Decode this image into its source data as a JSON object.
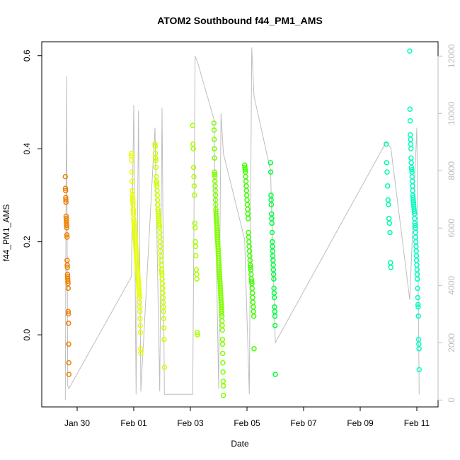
{
  "chart_data": {
    "type": "scatter",
    "title": "ATOM2 Southbound f44_PM1_AMS",
    "xlabel": "Date",
    "ylabel": "f44_PM1_AMS",
    "x_axis_type": "date",
    "x_range": [
      "2017-01-28T18:00",
      "2017-02-11T18:00"
    ],
    "x_ticks": [
      {
        "date": "2017-01-30",
        "label": "Jan 30"
      },
      {
        "date": "2017-02-01",
        "label": "Feb 01"
      },
      {
        "date": "2017-02-03",
        "label": "Feb 03"
      },
      {
        "date": "2017-02-05",
        "label": "Feb 05"
      },
      {
        "date": "2017-02-07",
        "label": "Feb 07"
      },
      {
        "date": "2017-02-09",
        "label": "Feb 09"
      },
      {
        "date": "2017-02-11",
        "label": "Feb 11"
      }
    ],
    "ylim": [
      -0.155,
      0.63
    ],
    "y_ticks": [
      0.0,
      0.2,
      0.4,
      0.6
    ],
    "y_tick_labels": [
      "0.0",
      "0.2",
      "0.4",
      "0.6"
    ],
    "y2_label": "",
    "y2lim": [
      -240,
      12500
    ],
    "y2_ticks": [
      0,
      2000,
      4000,
      6000,
      8000,
      10000,
      12000
    ],
    "y2_tick_labels": [
      "0",
      "2000",
      "4000",
      "6000",
      "8000",
      "10000",
      "12000"
    ],
    "grid": false,
    "legend": "none",
    "marker": "open-circle",
    "secondary_series_color": "#bebebe",
    "point_color_scale": [
      "#ff8c00",
      "#e6ff00",
      "#80ff00",
      "#00ff40",
      "#00ffc0"
    ],
    "clusters": [
      {
        "start": "2017-01-29T14:00",
        "end": "2017-01-29T17:00",
        "color": "#f08000",
        "values": [
          0.34,
          0.315,
          0.31,
          0.295,
          0.29,
          0.285,
          0.255,
          0.25,
          0.245,
          0.24,
          0.235,
          0.23,
          0.215,
          0.21,
          0.16,
          0.15,
          0.145,
          0.13,
          0.125,
          0.12,
          0.115,
          0.11,
          0.1,
          0.05,
          0.045,
          0.025,
          -0.02,
          -0.06,
          -0.085
        ]
      },
      {
        "start": "2017-01-31T22:00",
        "end": "2017-02-01T06:00",
        "color": "#e6ff00",
        "values": [
          0.39,
          0.385,
          0.375,
          0.35,
          0.33,
          0.31,
          0.3,
          0.295,
          0.29,
          0.285,
          0.28,
          0.27,
          0.265,
          0.26,
          0.25,
          0.245,
          0.24,
          0.235,
          0.23,
          0.225,
          0.22,
          0.215,
          0.21,
          0.205,
          0.2,
          0.195,
          0.19,
          0.185,
          0.18,
          0.175,
          0.17,
          0.165,
          0.16,
          0.155,
          0.15,
          0.145,
          0.14,
          0.135,
          0.13,
          0.125,
          0.12,
          0.115,
          0.11,
          0.105,
          0.1,
          0.095,
          0.09,
          0.085,
          0.08,
          0.07,
          0.06,
          0.05,
          0.035,
          0.02,
          0.005,
          -0.03,
          -0.04
        ]
      },
      {
        "start": "2017-02-01T18:00",
        "end": "2017-02-02T02:00",
        "color": "#ccff00",
        "values": [
          0.41,
          0.405,
          0.39,
          0.38,
          0.375,
          0.36,
          0.34,
          0.33,
          0.325,
          0.32,
          0.31,
          0.3,
          0.29,
          0.28,
          0.27,
          0.265,
          0.26,
          0.255,
          0.25,
          0.245,
          0.24,
          0.235,
          0.23,
          0.22,
          0.21,
          0.2,
          0.19,
          0.18,
          0.17,
          0.16,
          0.15,
          0.14,
          0.135,
          0.13,
          0.12,
          0.11,
          0.1,
          0.09,
          0.08,
          0.07,
          0.06,
          0.05,
          0.035,
          0.015,
          -0.01,
          -0.07
        ]
      },
      {
        "start": "2017-02-03T02:00",
        "end": "2017-02-03T06:00",
        "color": "#a8ff00",
        "values": [
          0.45,
          0.41,
          0.4,
          0.36,
          0.34,
          0.32,
          0.3,
          0.24,
          0.23,
          0.2,
          0.19,
          0.17,
          0.14,
          0.13,
          0.12,
          0.005,
          0.0
        ]
      },
      {
        "start": "2017-02-03T20:00",
        "end": "2017-02-04T04:00",
        "color": "#80ff00",
        "values": [
          0.455,
          0.44,
          0.42,
          0.4,
          0.38,
          0.35,
          0.345,
          0.34,
          0.33,
          0.32,
          0.31,
          0.3,
          0.29,
          0.28,
          0.27,
          0.265,
          0.26,
          0.255,
          0.25,
          0.245,
          0.24,
          0.235,
          0.23,
          0.225,
          0.22,
          0.215,
          0.21,
          0.205,
          0.2,
          0.195,
          0.19,
          0.185,
          0.18,
          0.175,
          0.17,
          0.165,
          0.16,
          0.155,
          0.15,
          0.145,
          0.14,
          0.135,
          0.13,
          0.125,
          0.12,
          0.115,
          0.11,
          0.105,
          0.1,
          0.095,
          0.09,
          0.085,
          0.08,
          0.075,
          0.07,
          0.065,
          0.06,
          0.055,
          0.05,
          0.045,
          0.04,
          0.03,
          0.02,
          0.01,
          -0.01,
          -0.02,
          -0.04,
          -0.06,
          -0.08,
          -0.1,
          -0.11,
          -0.13
        ]
      },
      {
        "start": "2017-02-04T22:00",
        "end": "2017-02-05T06:00",
        "color": "#40ff00",
        "values": [
          0.365,
          0.36,
          0.355,
          0.35,
          0.34,
          0.33,
          0.32,
          0.31,
          0.3,
          0.29,
          0.28,
          0.27,
          0.26,
          0.25,
          0.22,
          0.21,
          0.2,
          0.19,
          0.18,
          0.17,
          0.16,
          0.15,
          0.145,
          0.14,
          0.13,
          0.12,
          0.115,
          0.11,
          0.1,
          0.09,
          0.08,
          0.07,
          0.06,
          0.05,
          0.04,
          -0.03
        ]
      },
      {
        "start": "2017-02-05T20:00",
        "end": "2017-02-06T00:00",
        "color": "#00ff40",
        "values": [
          0.37,
          0.35,
          0.3,
          0.29,
          0.28,
          0.26,
          0.25,
          0.24,
          0.22,
          0.2,
          0.19,
          0.18,
          0.17,
          0.16,
          0.15,
          0.14,
          0.13,
          0.12,
          0.1,
          0.09,
          0.08,
          0.06,
          0.05,
          0.04,
          0.02,
          -0.085
        ]
      },
      {
        "start": "2017-02-09T22:00",
        "end": "2017-02-10T02:00",
        "color": "#00ffa0",
        "values": [
          0.41,
          0.37,
          0.35,
          0.32,
          0.29,
          0.28,
          0.25,
          0.24,
          0.22,
          0.155,
          0.145
        ]
      },
      {
        "start": "2017-02-10T18:00",
        "end": "2017-02-11T02:00",
        "color": "#00ffc0",
        "values": [
          0.61,
          0.485,
          0.46,
          0.43,
          0.42,
          0.41,
          0.4,
          0.38,
          0.37,
          0.36,
          0.355,
          0.35,
          0.34,
          0.33,
          0.32,
          0.31,
          0.3,
          0.295,
          0.29,
          0.285,
          0.28,
          0.275,
          0.27,
          0.265,
          0.26,
          0.25,
          0.24,
          0.235,
          0.23,
          0.22,
          0.21,
          0.2,
          0.19,
          0.18,
          0.17,
          0.16,
          0.15,
          0.14,
          0.13,
          0.12,
          0.1,
          0.08,
          0.065,
          0.06,
          0.04,
          -0.01,
          -0.02,
          -0.03,
          -0.075
        ]
      }
    ],
    "secondary_series": {
      "name": "",
      "color": "#bebebe",
      "points": [
        [
          "2017-01-29T14:00",
          0
        ],
        [
          "2017-01-29T15:00",
          11300
        ],
        [
          "2017-01-29T16:00",
          500
        ],
        [
          "2017-01-29T17:00",
          400
        ],
        [
          "2017-01-31T22:00",
          4300
        ],
        [
          "2017-02-01T00:00",
          10300
        ],
        [
          "2017-02-01T02:00",
          200
        ],
        [
          "2017-02-01T04:00",
          10100
        ],
        [
          "2017-02-01T06:00",
          300
        ],
        [
          "2017-02-01T18:00",
          9500
        ],
        [
          "2017-02-01T22:00",
          300
        ],
        [
          "2017-02-02T00:00",
          10200
        ],
        [
          "2017-02-02T02:00",
          200
        ],
        [
          "2017-02-03T02:00",
          200
        ],
        [
          "2017-02-03T04:00",
          12000
        ],
        [
          "2017-02-03T06:00",
          11800
        ],
        [
          "2017-02-03T20:00",
          9800
        ],
        [
          "2017-02-04T00:00",
          400
        ],
        [
          "2017-02-04T02:00",
          10000
        ],
        [
          "2017-02-04T04:00",
          8600
        ],
        [
          "2017-02-04T22:00",
          5600
        ],
        [
          "2017-02-05T02:00",
          200
        ],
        [
          "2017-02-05T04:00",
          12300
        ],
        [
          "2017-02-05T06:00",
          10600
        ],
        [
          "2017-02-05T20:00",
          8000
        ],
        [
          "2017-02-06T00:00",
          2000
        ],
        [
          "2017-02-09T22:00",
          9000
        ],
        [
          "2017-02-10T02:00",
          8800
        ],
        [
          "2017-02-10T18:00",
          3500
        ],
        [
          "2017-02-11T00:00",
          9500
        ],
        [
          "2017-02-11T02:00",
          200
        ]
      ]
    }
  }
}
